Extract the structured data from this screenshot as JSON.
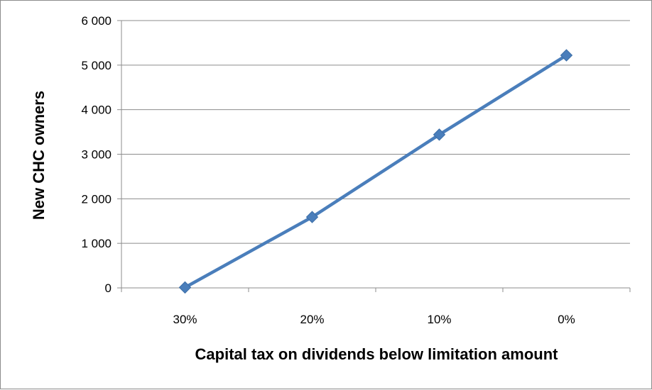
{
  "chart_data": {
    "type": "line",
    "title": "",
    "xlabel": "Capital tax on dividends below limitation amount",
    "ylabel": "New CHC owners",
    "categories": [
      "30%",
      "20%",
      "10%",
      "0%"
    ],
    "series": [
      {
        "values": [
          10,
          1590,
          3440,
          5220
        ],
        "color": "#4a7ebb",
        "marker": "diamond"
      }
    ],
    "ylim": [
      0,
      6000
    ],
    "yticks": [
      0,
      1000,
      2000,
      3000,
      4000,
      5000,
      6000
    ],
    "ytick_labels": [
      "0",
      "1 000",
      "2 000",
      "3 000",
      "4 000",
      "5 000",
      "6 000"
    ],
    "grid": "horizontal",
    "legend": "none"
  }
}
